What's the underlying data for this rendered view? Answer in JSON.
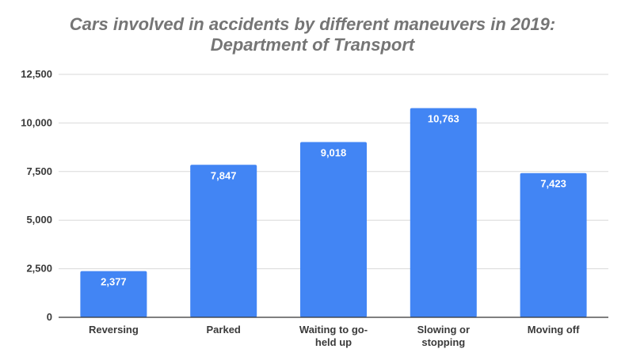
{
  "chart_data": {
    "type": "bar",
    "title": [
      "Cars involved in accidents by different maneuvers in 2019:",
      "Department of Transport"
    ],
    "xlabel": "",
    "ylabel": "",
    "categories": [
      [
        "Reversing"
      ],
      [
        "Parked"
      ],
      [
        "Waiting to go-",
        "held up"
      ],
      [
        "Slowing or",
        "stopping"
      ],
      [
        "Moving off"
      ]
    ],
    "values": [
      2377,
      7847,
      9018,
      10763,
      7423
    ],
    "value_labels": [
      "2,377",
      "7,847",
      "9,018",
      "10,763",
      "7,423"
    ],
    "ylim": [
      0,
      12500
    ],
    "yticks": [
      0,
      2500,
      5000,
      7500,
      10000,
      12500
    ],
    "ytick_labels": [
      "0",
      "2,500",
      "5,000",
      "7,500",
      "10,000",
      "12,500"
    ],
    "grid": true,
    "legend": "none",
    "colors": {
      "bar": "#4285f4",
      "grid": "#d9d9d9",
      "axis": "#333333",
      "title": "#757575"
    }
  }
}
